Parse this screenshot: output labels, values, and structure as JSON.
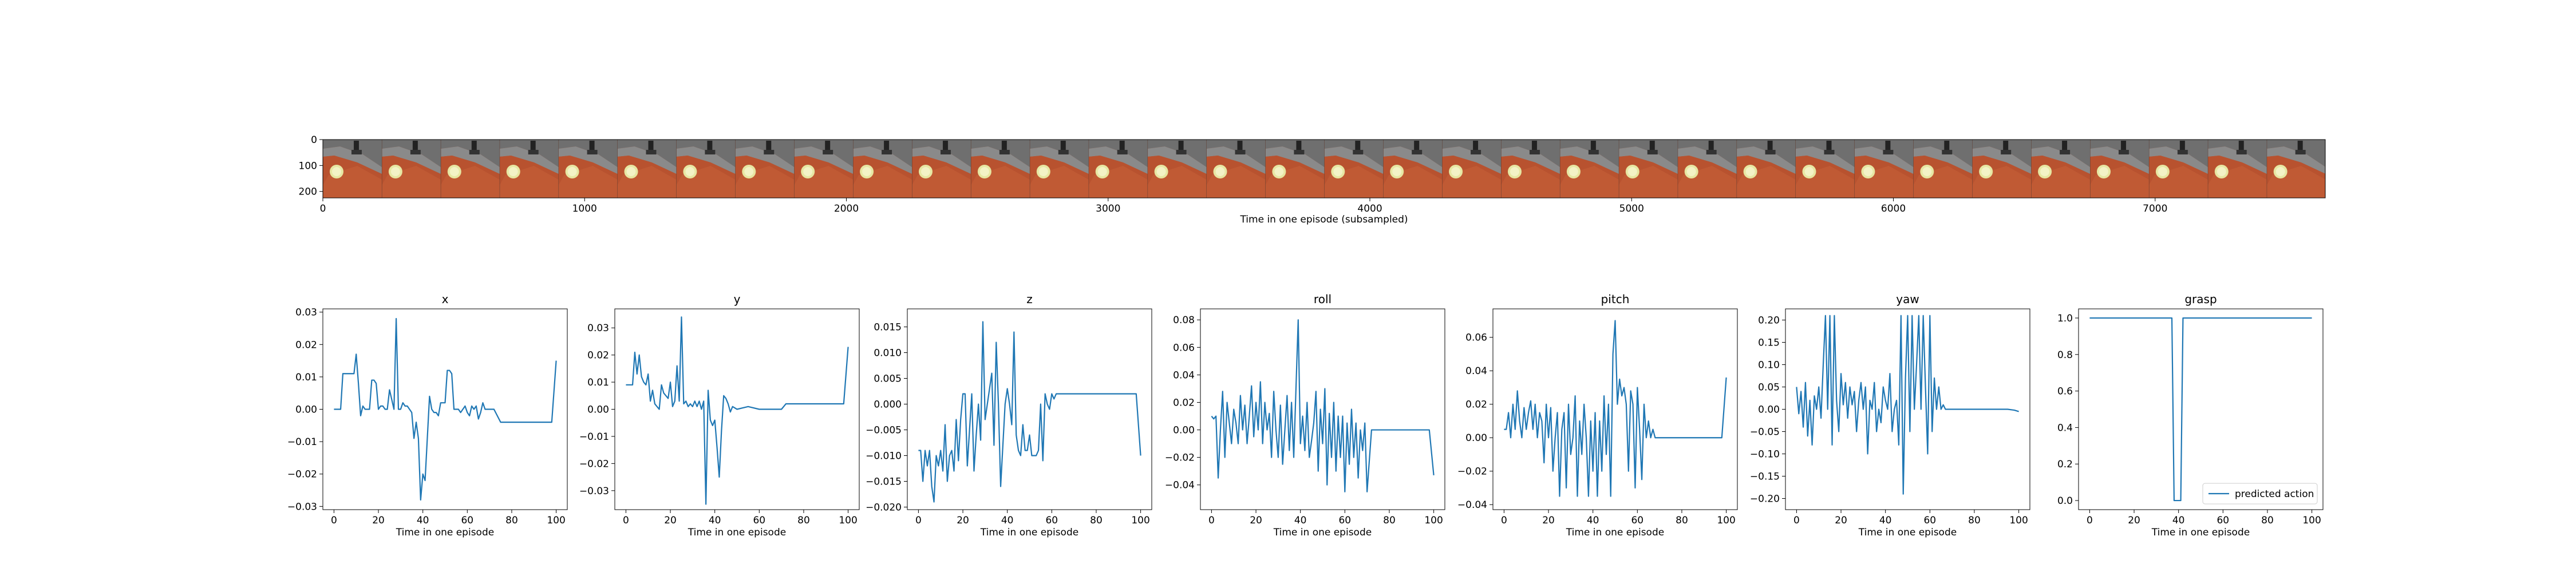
{
  "colors": {
    "line": "#1f77b4",
    "axis": "#000000",
    "background": "#ffffff"
  },
  "filmstrip": {
    "xlabel": "Time in one episode (subsampled)",
    "xticks": [
      0,
      1000,
      2000,
      3000,
      4000,
      5000,
      6000,
      7000
    ],
    "yticks": [
      0,
      100,
      200
    ],
    "xlim": [
      0,
      7650
    ],
    "ylim": [
      225,
      0
    ],
    "frame_count": 34,
    "frame_width": 225,
    "image": "robot-camera-frames-orange-table-yellow-circle"
  },
  "chart_data": [
    {
      "type": "line",
      "title": "x",
      "xlabel": "Time in one episode",
      "ylabel": "",
      "xlim": [
        -5,
        105
      ],
      "ylim": [
        -0.031,
        0.031
      ],
      "xticks": [
        0,
        20,
        40,
        60,
        80,
        100
      ],
      "yticks": [
        -0.03,
        -0.02,
        -0.01,
        0.0,
        0.01,
        0.02,
        0.03
      ],
      "ytick_labels": [
        "−0.03",
        "−0.02",
        "−0.01",
        "0.00",
        "0.01",
        "0.02",
        "0.03"
      ],
      "x": [
        0,
        2,
        3,
        4,
        6,
        8,
        9,
        10,
        11,
        12,
        13,
        14,
        16,
        17,
        18,
        19,
        20,
        21,
        22,
        23,
        24,
        25,
        26,
        27,
        28,
        29,
        30,
        31,
        32,
        33,
        34,
        35,
        36,
        37,
        38,
        39,
        40,
        41,
        42,
        43,
        44,
        45,
        46,
        47,
        48,
        49,
        50,
        51,
        52,
        53,
        54,
        55,
        56,
        57,
        58,
        59,
        60,
        61,
        62,
        63,
        64,
        65,
        66,
        67,
        68,
        69,
        70,
        72,
        75,
        80,
        85,
        90,
        95,
        98,
        100
      ],
      "values": [
        0.0,
        0.0,
        0.0,
        0.011,
        0.011,
        0.011,
        0.011,
        0.017,
        0.008,
        -0.002,
        0.001,
        0.0,
        0.0,
        0.009,
        0.009,
        0.008,
        0.0,
        0.001,
        0.001,
        0.0,
        0.0,
        0.006,
        0.003,
        0.0,
        0.028,
        0.0,
        0.0,
        0.002,
        0.001,
        0.001,
        0.0,
        -0.001,
        -0.009,
        -0.004,
        -0.009,
        -0.028,
        -0.02,
        -0.022,
        -0.009,
        0.004,
        0.0,
        -0.001,
        -0.001,
        -0.002,
        0.002,
        0.002,
        0.002,
        0.012,
        0.012,
        0.011,
        0.0,
        0.0,
        0.0,
        -0.001,
        0.0,
        0.001,
        -0.001,
        -0.002,
        0.001,
        0.0,
        0.001,
        -0.003,
        -0.001,
        0.002,
        0.0,
        0.0,
        0.0,
        0.0,
        -0.004,
        -0.004,
        -0.004,
        -0.004,
        -0.004,
        -0.004,
        0.015
      ]
    },
    {
      "type": "line",
      "title": "y",
      "xlabel": "Time in one episode",
      "ylabel": "",
      "xlim": [
        -5,
        105
      ],
      "ylim": [
        -0.037,
        0.037
      ],
      "xticks": [
        0,
        20,
        40,
        60,
        80,
        100
      ],
      "yticks": [
        -0.03,
        -0.02,
        -0.01,
        0.0,
        0.01,
        0.02,
        0.03
      ],
      "ytick_labels": [
        "−0.03",
        "−0.02",
        "−0.01",
        "0.00",
        "0.01",
        "0.02",
        "0.03"
      ],
      "x": [
        0,
        2,
        3,
        4,
        5,
        6,
        7,
        8,
        9,
        10,
        11,
        12,
        13,
        14,
        15,
        16,
        17,
        18,
        19,
        20,
        21,
        22,
        23,
        24,
        25,
        26,
        27,
        28,
        29,
        30,
        31,
        32,
        33,
        34,
        35,
        36,
        37,
        38,
        39,
        40,
        41,
        42,
        43,
        44,
        45,
        46,
        47,
        48,
        50,
        55,
        60,
        65,
        70,
        72,
        75,
        80,
        85,
        90,
        95,
        98,
        100
      ],
      "values": [
        0.009,
        0.009,
        0.009,
        0.021,
        0.013,
        0.02,
        0.012,
        0.01,
        0.009,
        0.013,
        0.003,
        0.007,
        0.002,
        0.001,
        0.0,
        0.009,
        0.006,
        0.005,
        0.004,
        0.01,
        0.001,
        0.003,
        0.016,
        0.003,
        0.034,
        0.002,
        0.003,
        0.001,
        0.002,
        0.001,
        0.003,
        0.001,
        0.003,
        0.0,
        0.003,
        -0.035,
        0.007,
        -0.004,
        -0.006,
        -0.004,
        -0.014,
        -0.025,
        -0.008,
        0.005,
        0.004,
        0.002,
        -0.001,
        0.001,
        0.0,
        0.001,
        0.0,
        0.0,
        0.0,
        0.002,
        0.002,
        0.002,
        0.002,
        0.002,
        0.002,
        0.002,
        0.023
      ]
    },
    {
      "type": "line",
      "title": "z",
      "xlabel": "Time in one episode",
      "ylabel": "",
      "xlim": [
        -5,
        105
      ],
      "ylim": [
        -0.0205,
        0.0185
      ],
      "xticks": [
        0,
        20,
        40,
        60,
        80,
        100
      ],
      "yticks": [
        -0.02,
        -0.015,
        -0.01,
        -0.005,
        0.0,
        0.005,
        0.01,
        0.015
      ],
      "ytick_labels": [
        "−0.020",
        "−0.015",
        "−0.010",
        "−0.005",
        "0.000",
        "0.005",
        "0.010",
        "0.015"
      ],
      "x": [
        0,
        1,
        2,
        3,
        4,
        5,
        6,
        7,
        8,
        9,
        10,
        11,
        12,
        13,
        14,
        15,
        16,
        17,
        18,
        19,
        20,
        21,
        22,
        23,
        24,
        25,
        26,
        27,
        28,
        29,
        30,
        31,
        32,
        33,
        34,
        35,
        36,
        37,
        38,
        39,
        40,
        41,
        42,
        43,
        44,
        45,
        46,
        47,
        48,
        49,
        50,
        51,
        52,
        53,
        54,
        55,
        56,
        57,
        58,
        59,
        60,
        61,
        62,
        63,
        64,
        65,
        66,
        67,
        68,
        69,
        70,
        75,
        80,
        85,
        90,
        95,
        98,
        100
      ],
      "values": [
        -0.009,
        -0.009,
        -0.015,
        -0.009,
        -0.012,
        -0.009,
        -0.016,
        -0.019,
        -0.01,
        -0.012,
        -0.009,
        -0.013,
        -0.004,
        -0.015,
        -0.01,
        -0.009,
        -0.013,
        -0.003,
        -0.011,
        -0.003,
        0.002,
        0.002,
        -0.012,
        -0.005,
        0.002,
        -0.013,
        -0.006,
        0.0,
        -0.007,
        0.016,
        -0.003,
        0.0,
        0.003,
        0.006,
        -0.008,
        0.012,
        0.0,
        -0.016,
        -0.008,
        0.0,
        0.003,
        0.0,
        -0.004,
        0.014,
        -0.006,
        -0.009,
        -0.01,
        -0.004,
        -0.009,
        -0.009,
        -0.006,
        -0.01,
        -0.01,
        -0.01,
        -0.009,
        0.0,
        -0.011,
        0.002,
        0.0,
        -0.001,
        0.002,
        0.001,
        0.002,
        0.002,
        0.002,
        0.002,
        0.002,
        0.002,
        0.002,
        0.002,
        0.002,
        0.002,
        0.002,
        0.002,
        0.002,
        0.002,
        0.002,
        -0.01
      ]
    },
    {
      "type": "line",
      "title": "roll",
      "xlabel": "Time in one episode",
      "ylabel": "",
      "xlim": [
        -5,
        105
      ],
      "ylim": [
        -0.058,
        0.088
      ],
      "xticks": [
        0,
        20,
        40,
        60,
        80,
        100
      ],
      "yticks": [
        -0.04,
        -0.02,
        0.0,
        0.02,
        0.04,
        0.06,
        0.08
      ],
      "ytick_labels": [
        "−0.04",
        "−0.02",
        "0.00",
        "0.02",
        "0.04",
        "0.06",
        "0.08"
      ],
      "x": [
        0,
        1,
        2,
        3,
        4,
        5,
        6,
        7,
        8,
        9,
        10,
        11,
        12,
        13,
        14,
        15,
        16,
        17,
        18,
        19,
        20,
        21,
        22,
        23,
        24,
        25,
        26,
        27,
        28,
        29,
        30,
        31,
        32,
        33,
        34,
        35,
        36,
        37,
        38,
        39,
        40,
        41,
        42,
        43,
        44,
        45,
        46,
        47,
        48,
        49,
        50,
        51,
        52,
        53,
        54,
        55,
        56,
        57,
        58,
        59,
        60,
        61,
        62,
        63,
        64,
        65,
        66,
        67,
        68,
        69,
        70,
        72,
        75,
        80,
        85,
        90,
        95,
        98,
        100
      ],
      "values": [
        0.01,
        0.008,
        0.01,
        -0.035,
        0.0,
        0.028,
        -0.02,
        0.02,
        0.005,
        -0.01,
        0.015,
        0.005,
        -0.01,
        0.025,
        0.0,
        0.018,
        -0.01,
        0.01,
        0.032,
        -0.005,
        0.02,
        0.0,
        0.035,
        -0.01,
        0.02,
        0.0,
        0.012,
        -0.02,
        0.028,
        0.0,
        -0.02,
        0.018,
        -0.025,
        0.0,
        0.025,
        -0.015,
        0.02,
        -0.02,
        0.03,
        0.08,
        -0.01,
        0.01,
        -0.015,
        0.02,
        -0.02,
        -0.008,
        0.005,
        0.028,
        -0.03,
        0.015,
        -0.01,
        0.03,
        -0.04,
        0.012,
        -0.02,
        0.02,
        -0.03,
        0.01,
        -0.02,
        0.01,
        -0.045,
        0.005,
        -0.025,
        0.015,
        -0.02,
        0.005,
        -0.035,
        0.0,
        -0.015,
        0.005,
        -0.045,
        0.0,
        0.0,
        0.0,
        0.0,
        0.0,
        0.0,
        0.0,
        -0.033
      ]
    },
    {
      "type": "line",
      "title": "pitch",
      "xlabel": "Time in one episode",
      "ylabel": "",
      "xlim": [
        -5,
        105
      ],
      "ylim": [
        -0.043,
        0.077
      ],
      "xticks": [
        0,
        20,
        40,
        60,
        80,
        100
      ],
      "yticks": [
        -0.04,
        -0.02,
        0.0,
        0.02,
        0.04,
        0.06
      ],
      "ytick_labels": [
        "−0.04",
        "−0.02",
        "0.00",
        "0.02",
        "0.04",
        "0.06"
      ],
      "x": [
        0,
        1,
        2,
        3,
        4,
        5,
        6,
        7,
        8,
        9,
        10,
        11,
        12,
        13,
        14,
        15,
        16,
        17,
        18,
        19,
        20,
        21,
        22,
        23,
        24,
        25,
        26,
        27,
        28,
        29,
        30,
        31,
        32,
        33,
        34,
        35,
        36,
        37,
        38,
        39,
        40,
        41,
        42,
        43,
        44,
        45,
        46,
        47,
        48,
        49,
        50,
        51,
        52,
        53,
        54,
        55,
        56,
        57,
        58,
        59,
        60,
        61,
        62,
        63,
        64,
        65,
        66,
        67,
        68,
        69,
        70,
        72,
        75,
        80,
        85,
        90,
        95,
        98,
        100
      ],
      "values": [
        0.005,
        0.005,
        0.015,
        0.0,
        0.02,
        0.005,
        0.028,
        0.01,
        0.0,
        0.018,
        0.005,
        0.015,
        0.022,
        0.005,
        0.02,
        0.0,
        0.015,
        0.01,
        -0.015,
        0.02,
        0.0,
        0.018,
        -0.02,
        0.0,
        0.015,
        -0.035,
        0.005,
        0.015,
        -0.03,
        0.02,
        -0.01,
        0.0,
        0.025,
        -0.035,
        0.01,
        -0.01,
        0.02,
        0.0,
        -0.035,
        0.01,
        -0.02,
        0.015,
        -0.035,
        0.01,
        -0.02,
        0.025,
        -0.01,
        0.02,
        -0.035,
        0.05,
        0.07,
        0.02,
        0.035,
        0.025,
        0.03,
        0.02,
        -0.02,
        0.028,
        0.02,
        -0.03,
        0.03,
        0.005,
        -0.025,
        0.02,
        0.0,
        0.01,
        0.0,
        0.005,
        0.0,
        0.0,
        0.0,
        0.0,
        0.0,
        0.0,
        0.0,
        0.0,
        0.0,
        0.0,
        0.036
      ]
    },
    {
      "type": "line",
      "title": "yaw",
      "xlabel": "Time in one episode",
      "ylabel": "",
      "xlim": [
        -5,
        105
      ],
      "ylim": [
        -0.225,
        0.225
      ],
      "xticks": [
        0,
        20,
        40,
        60,
        80,
        100
      ],
      "yticks": [
        -0.2,
        -0.15,
        -0.1,
        -0.05,
        0.0,
        0.05,
        0.1,
        0.15,
        0.2
      ],
      "ytick_labels": [
        "−0.20",
        "−0.15",
        "−0.10",
        "−0.05",
        "0.00",
        "0.05",
        "0.10",
        "0.15",
        "0.20"
      ],
      "x": [
        0,
        1,
        2,
        3,
        4,
        5,
        6,
        7,
        8,
        9,
        10,
        11,
        12,
        13,
        14,
        15,
        16,
        17,
        18,
        19,
        20,
        21,
        22,
        23,
        24,
        25,
        26,
        27,
        28,
        29,
        30,
        31,
        32,
        33,
        34,
        35,
        36,
        37,
        38,
        39,
        40,
        41,
        42,
        43,
        44,
        45,
        46,
        47,
        48,
        49,
        50,
        51,
        52,
        53,
        54,
        55,
        56,
        57,
        58,
        59,
        60,
        61,
        62,
        63,
        64,
        65,
        66,
        67,
        68,
        69,
        70,
        72,
        75,
        80,
        85,
        90,
        95,
        98,
        100
      ],
      "values": [
        0.05,
        -0.01,
        0.04,
        -0.04,
        0.06,
        -0.06,
        0.02,
        -0.08,
        0.03,
        0.0,
        0.05,
        -0.02,
        0.1,
        0.21,
        0.0,
        0.21,
        -0.08,
        0.21,
        0.02,
        -0.05,
        0.08,
        0.01,
        0.06,
        -0.02,
        0.05,
        0.01,
        0.04,
        -0.05,
        0.02,
        0.06,
        0.0,
        0.05,
        -0.1,
        0.02,
        0.0,
        0.06,
        -0.05,
        0.0,
        -0.03,
        0.05,
        0.02,
        0.0,
        0.08,
        -0.05,
        0.0,
        0.02,
        -0.08,
        0.21,
        -0.19,
        0.07,
        0.21,
        -0.05,
        0.21,
        0.0,
        0.1,
        0.21,
        0.0,
        0.21,
        0.05,
        -0.1,
        0.21,
        -0.05,
        0.07,
        0.0,
        0.05,
        0.0,
        0.01,
        0.0,
        0.0,
        0.0,
        0.0,
        0.0,
        0.0,
        0.0,
        0.0,
        0.0,
        0.0,
        -0.002,
        -0.005
      ]
    },
    {
      "type": "line",
      "title": "grasp",
      "xlabel": "Time in one episode",
      "ylabel": "",
      "xlim": [
        -5,
        105
      ],
      "ylim": [
        -0.05,
        1.05
      ],
      "xticks": [
        0,
        20,
        40,
        60,
        80,
        100
      ],
      "yticks": [
        0.0,
        0.2,
        0.4,
        0.6,
        0.8,
        1.0
      ],
      "ytick_labels": [
        "0.0",
        "0.2",
        "0.4",
        "0.6",
        "0.8",
        "1.0"
      ],
      "x": [
        0,
        37,
        38,
        41,
        42,
        100
      ],
      "values": [
        1.0,
        1.0,
        0.0,
        0.0,
        1.0,
        1.0
      ],
      "legend": {
        "label": "predicted action",
        "placement": "lower-right"
      }
    }
  ]
}
